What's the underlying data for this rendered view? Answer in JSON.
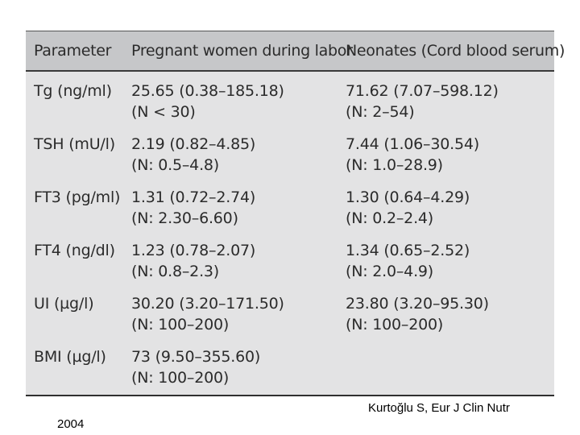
{
  "table": {
    "headers": [
      "Parameter",
      "Pregnant women during labor",
      "Neonates (Cord blood serum)"
    ],
    "rows": [
      {
        "parameter": "Tg (ng/ml)",
        "pregnant": [
          "25.65 (0.38–185.18)",
          "(N < 30)"
        ],
        "neonates": [
          "71.62 (7.07–598.12)",
          "(N: 2–54)"
        ]
      },
      {
        "parameter": "TSH (mU/l)",
        "pregnant": [
          "2.19 (0.82–4.85)",
          "(N: 0.5–4.8)"
        ],
        "neonates": [
          "7.44 (1.06–30.54)",
          "(N: 1.0–28.9)"
        ]
      },
      {
        "parameter": "FT3 (pg/ml)",
        "pregnant": [
          "1.31 (0.72–2.74)",
          "(N: 2.30–6.60)"
        ],
        "neonates": [
          "1.30 (0.64–4.29)",
          "(N: 0.2–2.4)"
        ]
      },
      {
        "parameter": "FT4 (ng/dl)",
        "pregnant": [
          "1.23 (0.78–2.07)",
          "(N: 0.8–2.3)"
        ],
        "neonates": [
          "1.34 (0.65–2.52)",
          "(N: 2.0–4.9)"
        ]
      },
      {
        "parameter": "UI (µg/l)",
        "pregnant": [
          "30.20 (3.20–171.50)",
          "(N: 100–200)"
        ],
        "neonates": [
          "23.80 (3.20–95.30)",
          "(N: 100–200)"
        ]
      },
      {
        "parameter": "BMI (µg/l)",
        "pregnant": [
          "73 (9.50–355.60)",
          "(N: 100–200)"
        ],
        "neonates": [
          "",
          ""
        ]
      }
    ]
  },
  "citation": "Kurtoğlu S, Eur J Clin Nutr",
  "year": "2004"
}
